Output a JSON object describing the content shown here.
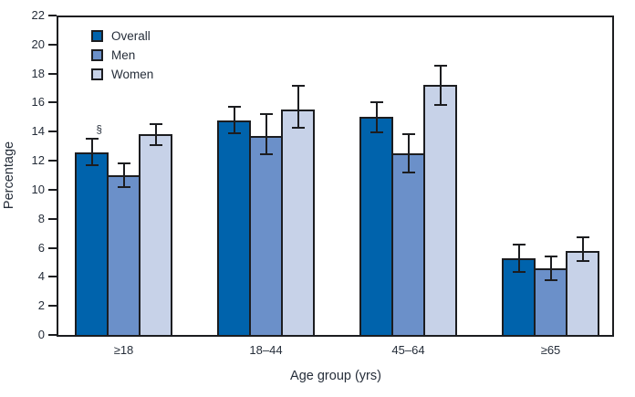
{
  "chart_data": {
    "type": "bar",
    "title": "",
    "xlabel": "Age group (yrs)",
    "ylabel": "Percentage",
    "ylim": [
      0,
      22
    ],
    "yticks": [
      0,
      2,
      4,
      6,
      8,
      10,
      12,
      14,
      16,
      18,
      20,
      22
    ],
    "grid": false,
    "legend_position": "top-left-inside",
    "error_bars": true,
    "categories": [
      "≥18",
      "18–44",
      "45–64",
      "≥65"
    ],
    "series": [
      {
        "name": "Overall",
        "color": "#0063ac",
        "values": [
          12.6,
          14.8,
          15.0,
          5.3
        ],
        "ci_low": [
          11.6,
          13.8,
          13.9,
          4.3
        ],
        "ci_high": [
          13.6,
          15.8,
          16.1,
          6.3
        ]
      },
      {
        "name": "Men",
        "color": "#6b90c9",
        "values": [
          11.0,
          13.7,
          12.5,
          4.6
        ],
        "ci_low": [
          10.1,
          12.4,
          11.1,
          3.7
        ],
        "ci_high": [
          11.9,
          15.3,
          13.9,
          5.5
        ]
      },
      {
        "name": "Women",
        "color": "#c7d2e8",
        "values": [
          13.8,
          15.5,
          17.2,
          5.8
        ],
        "ci_low": [
          13.0,
          14.2,
          15.8,
          5.0
        ],
        "ci_high": [
          14.6,
          17.2,
          18.6,
          6.8
        ]
      }
    ],
    "annotation": {
      "text": "§",
      "series": "Overall",
      "category": "≥18"
    },
    "colors": {
      "axis": "#1c1d20",
      "text": "#262e3a",
      "background": "#ffffff"
    }
  }
}
